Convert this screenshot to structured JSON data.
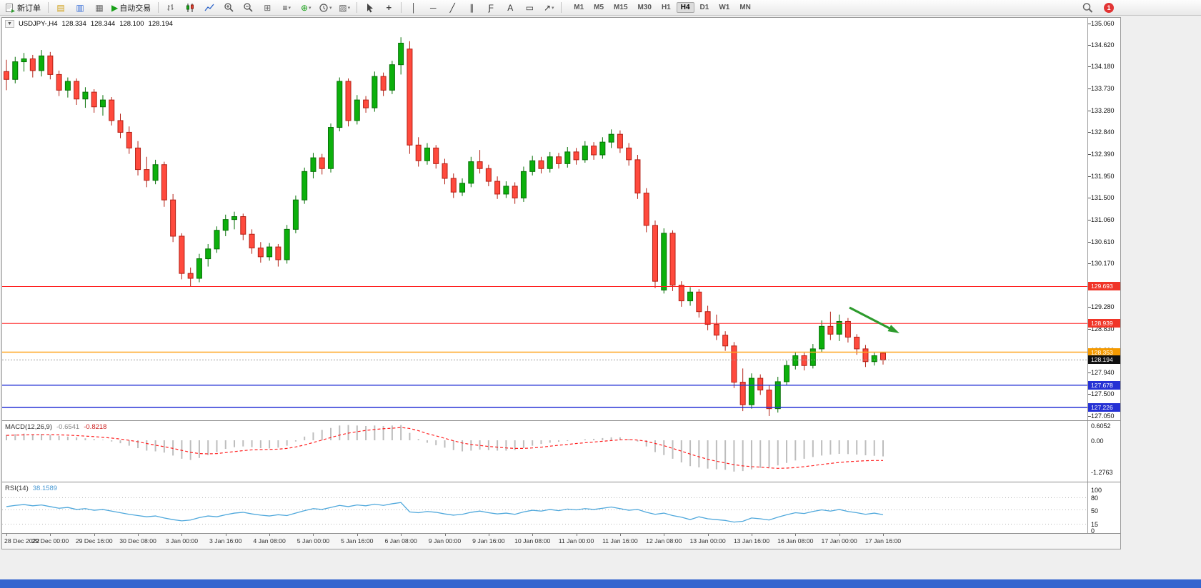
{
  "toolbar": {
    "new_order_label": "新订单",
    "autotrade_label": "自动交易",
    "timeframes": [
      "M1",
      "M5",
      "M15",
      "M30",
      "H1",
      "H4",
      "D1",
      "W1",
      "MN"
    ],
    "active_timeframe": "H4",
    "notification_count": "1"
  },
  "icons": {
    "collapse": "▼",
    "charts": "▤",
    "market_watch": "▥",
    "navigator": "▦",
    "autotrade_play": "▶",
    "tile": "⊞",
    "indicators": "≡",
    "new_chart": "⊕",
    "templates": "▨",
    "crosshair": "+",
    "vline": "│",
    "hline": "─",
    "trendline": "╱",
    "channel": "∥",
    "fibonacci": "Ƒ",
    "text": "A",
    "label": "▭",
    "arrows": "↗",
    "dropdown": "▾"
  },
  "chart": {
    "symbol_period": "USDJPY-,H4",
    "ohlc": {
      "open": "128.334",
      "high": "128.344",
      "low": "128.100",
      "close": "128.194"
    },
    "levels": [
      {
        "price": 129.693,
        "label": "129.693",
        "color": "#ff2020",
        "badge": "#f03528",
        "width": 1,
        "style": "solid"
      },
      {
        "price": 128.939,
        "label": "128.939",
        "color": "#ff2020",
        "badge": "#f03528",
        "width": 1,
        "style": "solid"
      },
      {
        "price": 128.353,
        "label": "128.353",
        "color": "#ffa51e",
        "badge": "#f59a00",
        "width": 1.4,
        "style": "solid"
      },
      {
        "price": 128.194,
        "label": "128.194",
        "color": "#a0a0a0",
        "badge": "#101010",
        "width": 1,
        "style": "dotted"
      },
      {
        "price": 127.678,
        "label": "127.678",
        "color": "#2531d4",
        "badge": "#2531d4",
        "width": 1.4,
        "style": "solid"
      },
      {
        "price": 127.226,
        "label": "127.226",
        "color": "#2531d4",
        "badge": "#2531d4",
        "width": 1.4,
        "style": "solid"
      }
    ],
    "arrow": {
      "color": "#2d9b2d"
    }
  },
  "chart_data": {
    "type": "candlestick",
    "symbol": "USDJPY",
    "timeframe": "H4",
    "price_min": 127.05,
    "price_max": 135.06,
    "up_color": "#0cb00c",
    "up_border": "#067006",
    "down_color": "#ff4a3d",
    "down_border": "#b32015",
    "price_axis_labels": [
      "135.060",
      "134.620",
      "134.180",
      "133.730",
      "133.280",
      "132.840",
      "132.390",
      "131.950",
      "131.500",
      "131.060",
      "130.610",
      "130.170",
      "129.720",
      "129.280",
      "128.830",
      "128.390",
      "127.940",
      "127.500",
      "127.050"
    ],
    "time_labels": [
      "28 Dec 2022",
      "29 Dec 00:00",
      "29 Dec 16:00",
      "30 Dec 08:00",
      "3 Jan 00:00",
      "3 Jan 16:00",
      "4 Jan 08:00",
      "5 Jan 00:00",
      "5 Jan 16:00",
      "6 Jan 08:00",
      "9 Jan 00:00",
      "9 Jan 16:00",
      "10 Jan 08:00",
      "11 Jan 00:00",
      "11 Jan 16:00",
      "12 Jan 08:00",
      "13 Jan 00:00",
      "13 Jan 16:00",
      "16 Jan 08:00",
      "17 Jan 00:00",
      "17 Jan 16:00"
    ],
    "candles": [
      [
        134.08,
        134.32,
        133.7,
        133.92
      ],
      [
        133.92,
        134.38,
        133.84,
        134.28
      ],
      [
        134.28,
        134.46,
        134.08,
        134.34
      ],
      [
        134.34,
        134.42,
        133.96,
        134.1
      ],
      [
        134.1,
        134.52,
        133.98,
        134.4
      ],
      [
        134.4,
        134.48,
        133.92,
        134.02
      ],
      [
        134.02,
        134.1,
        133.58,
        133.7
      ],
      [
        133.7,
        133.96,
        133.55,
        133.88
      ],
      [
        133.88,
        133.94,
        133.4,
        133.52
      ],
      [
        133.52,
        133.76,
        133.34,
        133.66
      ],
      [
        133.66,
        133.72,
        133.24,
        133.36
      ],
      [
        133.36,
        133.6,
        133.18,
        133.5
      ],
      [
        133.5,
        133.56,
        132.98,
        133.08
      ],
      [
        133.08,
        133.22,
        132.72,
        132.84
      ],
      [
        132.84,
        132.96,
        132.4,
        132.52
      ],
      [
        132.52,
        132.66,
        131.96,
        132.08
      ],
      [
        132.08,
        132.34,
        131.72,
        131.86
      ],
      [
        131.86,
        132.28,
        131.78,
        132.18
      ],
      [
        132.18,
        132.24,
        131.32,
        131.46
      ],
      [
        131.46,
        131.58,
        130.6,
        130.72
      ],
      [
        130.72,
        130.78,
        129.84,
        129.96
      ],
      [
        129.96,
        130.08,
        129.7,
        129.86
      ],
      [
        129.86,
        130.36,
        129.78,
        130.26
      ],
      [
        130.26,
        130.56,
        130.1,
        130.46
      ],
      [
        130.46,
        130.92,
        130.38,
        130.84
      ],
      [
        130.84,
        131.16,
        130.72,
        131.06
      ],
      [
        131.06,
        131.22,
        130.86,
        131.12
      ],
      [
        131.12,
        131.18,
        130.64,
        130.76
      ],
      [
        130.76,
        130.86,
        130.36,
        130.48
      ],
      [
        130.48,
        130.6,
        130.18,
        130.3
      ],
      [
        130.3,
        130.58,
        130.22,
        130.5
      ],
      [
        130.5,
        130.56,
        130.1,
        130.24
      ],
      [
        130.24,
        130.95,
        130.16,
        130.86
      ],
      [
        130.86,
        131.55,
        130.78,
        131.46
      ],
      [
        131.46,
        132.12,
        131.38,
        132.04
      ],
      [
        132.04,
        132.42,
        131.9,
        132.32
      ],
      [
        132.32,
        132.4,
        131.98,
        132.1
      ],
      [
        132.1,
        133.02,
        132.02,
        132.94
      ],
      [
        132.94,
        133.96,
        132.86,
        133.88
      ],
      [
        133.88,
        133.94,
        132.96,
        133.08
      ],
      [
        133.08,
        133.6,
        133.0,
        133.5
      ],
      [
        133.5,
        133.58,
        133.24,
        133.34
      ],
      [
        133.34,
        134.08,
        133.26,
        133.98
      ],
      [
        133.98,
        134.06,
        133.58,
        133.7
      ],
      [
        133.7,
        134.3,
        133.62,
        134.22
      ],
      [
        134.22,
        134.78,
        134.02,
        134.66
      ],
      [
        134.54,
        134.7,
        132.4,
        132.58
      ],
      [
        132.58,
        132.74,
        132.14,
        132.26
      ],
      [
        132.26,
        132.62,
        132.18,
        132.52
      ],
      [
        132.52,
        132.58,
        132.1,
        132.2
      ],
      [
        132.2,
        132.3,
        131.78,
        131.9
      ],
      [
        131.9,
        132.0,
        131.5,
        131.62
      ],
      [
        131.62,
        131.9,
        131.54,
        131.8
      ],
      [
        131.8,
        132.34,
        131.72,
        132.24
      ],
      [
        132.24,
        132.48,
        132.0,
        132.1
      ],
      [
        132.1,
        132.18,
        131.74,
        131.84
      ],
      [
        131.84,
        131.94,
        131.48,
        131.58
      ],
      [
        131.58,
        131.84,
        131.5,
        131.74
      ],
      [
        131.74,
        131.82,
        131.38,
        131.5
      ],
      [
        131.5,
        132.14,
        131.42,
        132.04
      ],
      [
        132.04,
        132.36,
        131.96,
        132.26
      ],
      [
        132.26,
        132.34,
        132.0,
        132.1
      ],
      [
        132.1,
        132.44,
        132.02,
        132.34
      ],
      [
        132.34,
        132.42,
        132.1,
        132.2
      ],
      [
        132.2,
        132.54,
        132.12,
        132.44
      ],
      [
        132.44,
        132.52,
        132.18,
        132.28
      ],
      [
        132.28,
        132.66,
        132.22,
        132.56
      ],
      [
        132.56,
        132.64,
        132.28,
        132.38
      ],
      [
        132.38,
        132.74,
        132.3,
        132.64
      ],
      [
        132.64,
        132.9,
        132.52,
        132.8
      ],
      [
        132.8,
        132.88,
        132.42,
        132.52
      ],
      [
        132.52,
        132.62,
        132.16,
        132.28
      ],
      [
        132.28,
        132.38,
        131.48,
        131.6
      ],
      [
        131.6,
        131.7,
        130.8,
        130.94
      ],
      [
        130.94,
        131.04,
        129.66,
        129.8
      ],
      [
        129.62,
        130.88,
        129.55,
        130.78
      ],
      [
        130.78,
        130.84,
        129.6,
        129.72
      ],
      [
        129.72,
        129.8,
        129.28,
        129.4
      ],
      [
        129.4,
        129.68,
        129.3,
        129.58
      ],
      [
        129.58,
        129.64,
        129.06,
        129.18
      ],
      [
        129.18,
        129.3,
        128.8,
        128.92
      ],
      [
        128.92,
        129.12,
        128.6,
        128.7
      ],
      [
        128.7,
        128.78,
        128.38,
        128.48
      ],
      [
        128.48,
        128.56,
        127.62,
        127.74
      ],
      [
        127.74,
        128.02,
        127.15,
        127.28
      ],
      [
        127.28,
        127.92,
        127.2,
        127.82
      ],
      [
        127.82,
        127.9,
        127.48,
        127.58
      ],
      [
        127.58,
        127.68,
        127.05,
        127.2
      ],
      [
        127.2,
        127.85,
        127.12,
        127.75
      ],
      [
        127.75,
        128.18,
        127.68,
        128.08
      ],
      [
        128.08,
        128.36,
        128.0,
        128.28
      ],
      [
        128.28,
        128.34,
        127.98,
        128.08
      ],
      [
        128.08,
        128.52,
        128.02,
        128.42
      ],
      [
        128.42,
        129.0,
        128.36,
        128.88
      ],
      [
        128.88,
        129.18,
        128.6,
        128.72
      ],
      [
        128.72,
        129.12,
        128.58,
        128.98
      ],
      [
        128.98,
        129.05,
        128.55,
        128.66
      ],
      [
        128.66,
        128.72,
        128.3,
        128.42
      ],
      [
        128.42,
        128.5,
        128.05,
        128.16
      ],
      [
        128.16,
        128.34,
        128.08,
        128.28
      ],
      [
        128.334,
        128.344,
        128.1,
        128.194
      ]
    ],
    "macd": {
      "label": "MACD(12,26,9)",
      "value": "-0.6541",
      "signal_value": "-0.8218",
      "axis": [
        "0.6052",
        "0.00",
        "-1.2763"
      ],
      "hist": [
        0.22,
        0.25,
        0.27,
        0.24,
        0.26,
        0.22,
        0.18,
        0.15,
        0.12,
        0.08,
        0.05,
        0.02,
        -0.05,
        -0.12,
        -0.22,
        -0.32,
        -0.42,
        -0.45,
        -0.5,
        -0.62,
        -0.75,
        -0.8,
        -0.72,
        -0.6,
        -0.48,
        -0.35,
        -0.28,
        -0.25,
        -0.28,
        -0.32,
        -0.33,
        -0.3,
        -0.22,
        -0.05,
        0.15,
        0.32,
        0.42,
        0.5,
        0.6,
        0.62,
        0.6,
        0.58,
        0.6,
        0.58,
        0.6,
        0.62,
        0.3,
        0.05,
        -0.1,
        -0.2,
        -0.3,
        -0.4,
        -0.45,
        -0.42,
        -0.38,
        -0.4,
        -0.42,
        -0.42,
        -0.4,
        -0.32,
        -0.22,
        -0.15,
        -0.1,
        -0.06,
        -0.03,
        0.0,
        0.04,
        0.06,
        0.09,
        0.12,
        0.12,
        0.05,
        -0.05,
        -0.25,
        -0.48,
        -0.6,
        -0.75,
        -0.9,
        -1.05,
        -1.1,
        -1.15,
        -1.18,
        -1.2,
        -1.27,
        -1.25,
        -1.18,
        -1.12,
        -1.1,
        -1.02,
        -0.92,
        -0.82,
        -0.75,
        -0.68,
        -0.62,
        -0.58,
        -0.55,
        -0.56,
        -0.58,
        -0.61,
        -0.63,
        -0.6541
      ],
      "signal": [
        0.2,
        0.21,
        0.22,
        0.23,
        0.23,
        0.23,
        0.22,
        0.21,
        0.19,
        0.17,
        0.15,
        0.12,
        0.09,
        0.05,
        0.0,
        -0.06,
        -0.13,
        -0.2,
        -0.26,
        -0.33,
        -0.41,
        -0.49,
        -0.54,
        -0.55,
        -0.54,
        -0.5,
        -0.46,
        -0.42,
        -0.39,
        -0.38,
        -0.37,
        -0.36,
        -0.33,
        -0.27,
        -0.19,
        -0.09,
        0.01,
        0.11,
        0.21,
        0.29,
        0.35,
        0.4,
        0.44,
        0.47,
        0.49,
        0.52,
        0.48,
        0.39,
        0.27,
        0.18,
        0.08,
        -0.02,
        -0.11,
        -0.17,
        -0.21,
        -0.25,
        -0.28,
        -0.31,
        -0.33,
        -0.33,
        -0.31,
        -0.28,
        -0.24,
        -0.2,
        -0.17,
        -0.13,
        -0.1,
        -0.07,
        -0.04,
        -0.01,
        0.02,
        0.03,
        0.01,
        -0.04,
        -0.13,
        -0.22,
        -0.33,
        -0.44,
        -0.56,
        -0.67,
        -0.77,
        -0.85,
        -0.92,
        -0.99,
        -1.04,
        -1.07,
        -1.09,
        -1.12,
        -1.14,
        -1.13,
        -1.11,
        -1.07,
        -1.03,
        -0.98,
        -0.94,
        -0.9,
        -0.87,
        -0.85,
        -0.83,
        -0.82,
        -0.8218
      ]
    },
    "rsi": {
      "label": "RSI(14)",
      "value": "38.1589",
      "axis": [
        "100",
        "80",
        "50",
        "15",
        "0"
      ],
      "levels": [
        80,
        50,
        15
      ],
      "values": [
        58,
        61,
        63,
        60,
        62,
        58,
        54,
        56,
        51,
        53,
        49,
        51,
        47,
        43,
        39,
        36,
        33,
        35,
        30,
        26,
        23,
        25,
        31,
        35,
        33,
        38,
        42,
        44,
        40,
        37,
        35,
        38,
        36,
        42,
        48,
        53,
        51,
        56,
        61,
        58,
        62,
        60,
        64,
        61,
        65,
        68,
        45,
        43,
        46,
        44,
        40,
        37,
        39,
        44,
        47,
        43,
        40,
        42,
        39,
        45,
        49,
        47,
        51,
        48,
        52,
        50,
        53,
        51,
        54,
        57,
        53,
        49,
        51,
        44,
        39,
        42,
        36,
        32,
        26,
        33,
        28,
        26,
        24,
        20,
        22,
        30,
        28,
        25,
        32,
        38,
        43,
        41,
        46,
        50,
        47,
        51,
        46,
        43,
        39,
        42,
        38.16
      ]
    }
  }
}
